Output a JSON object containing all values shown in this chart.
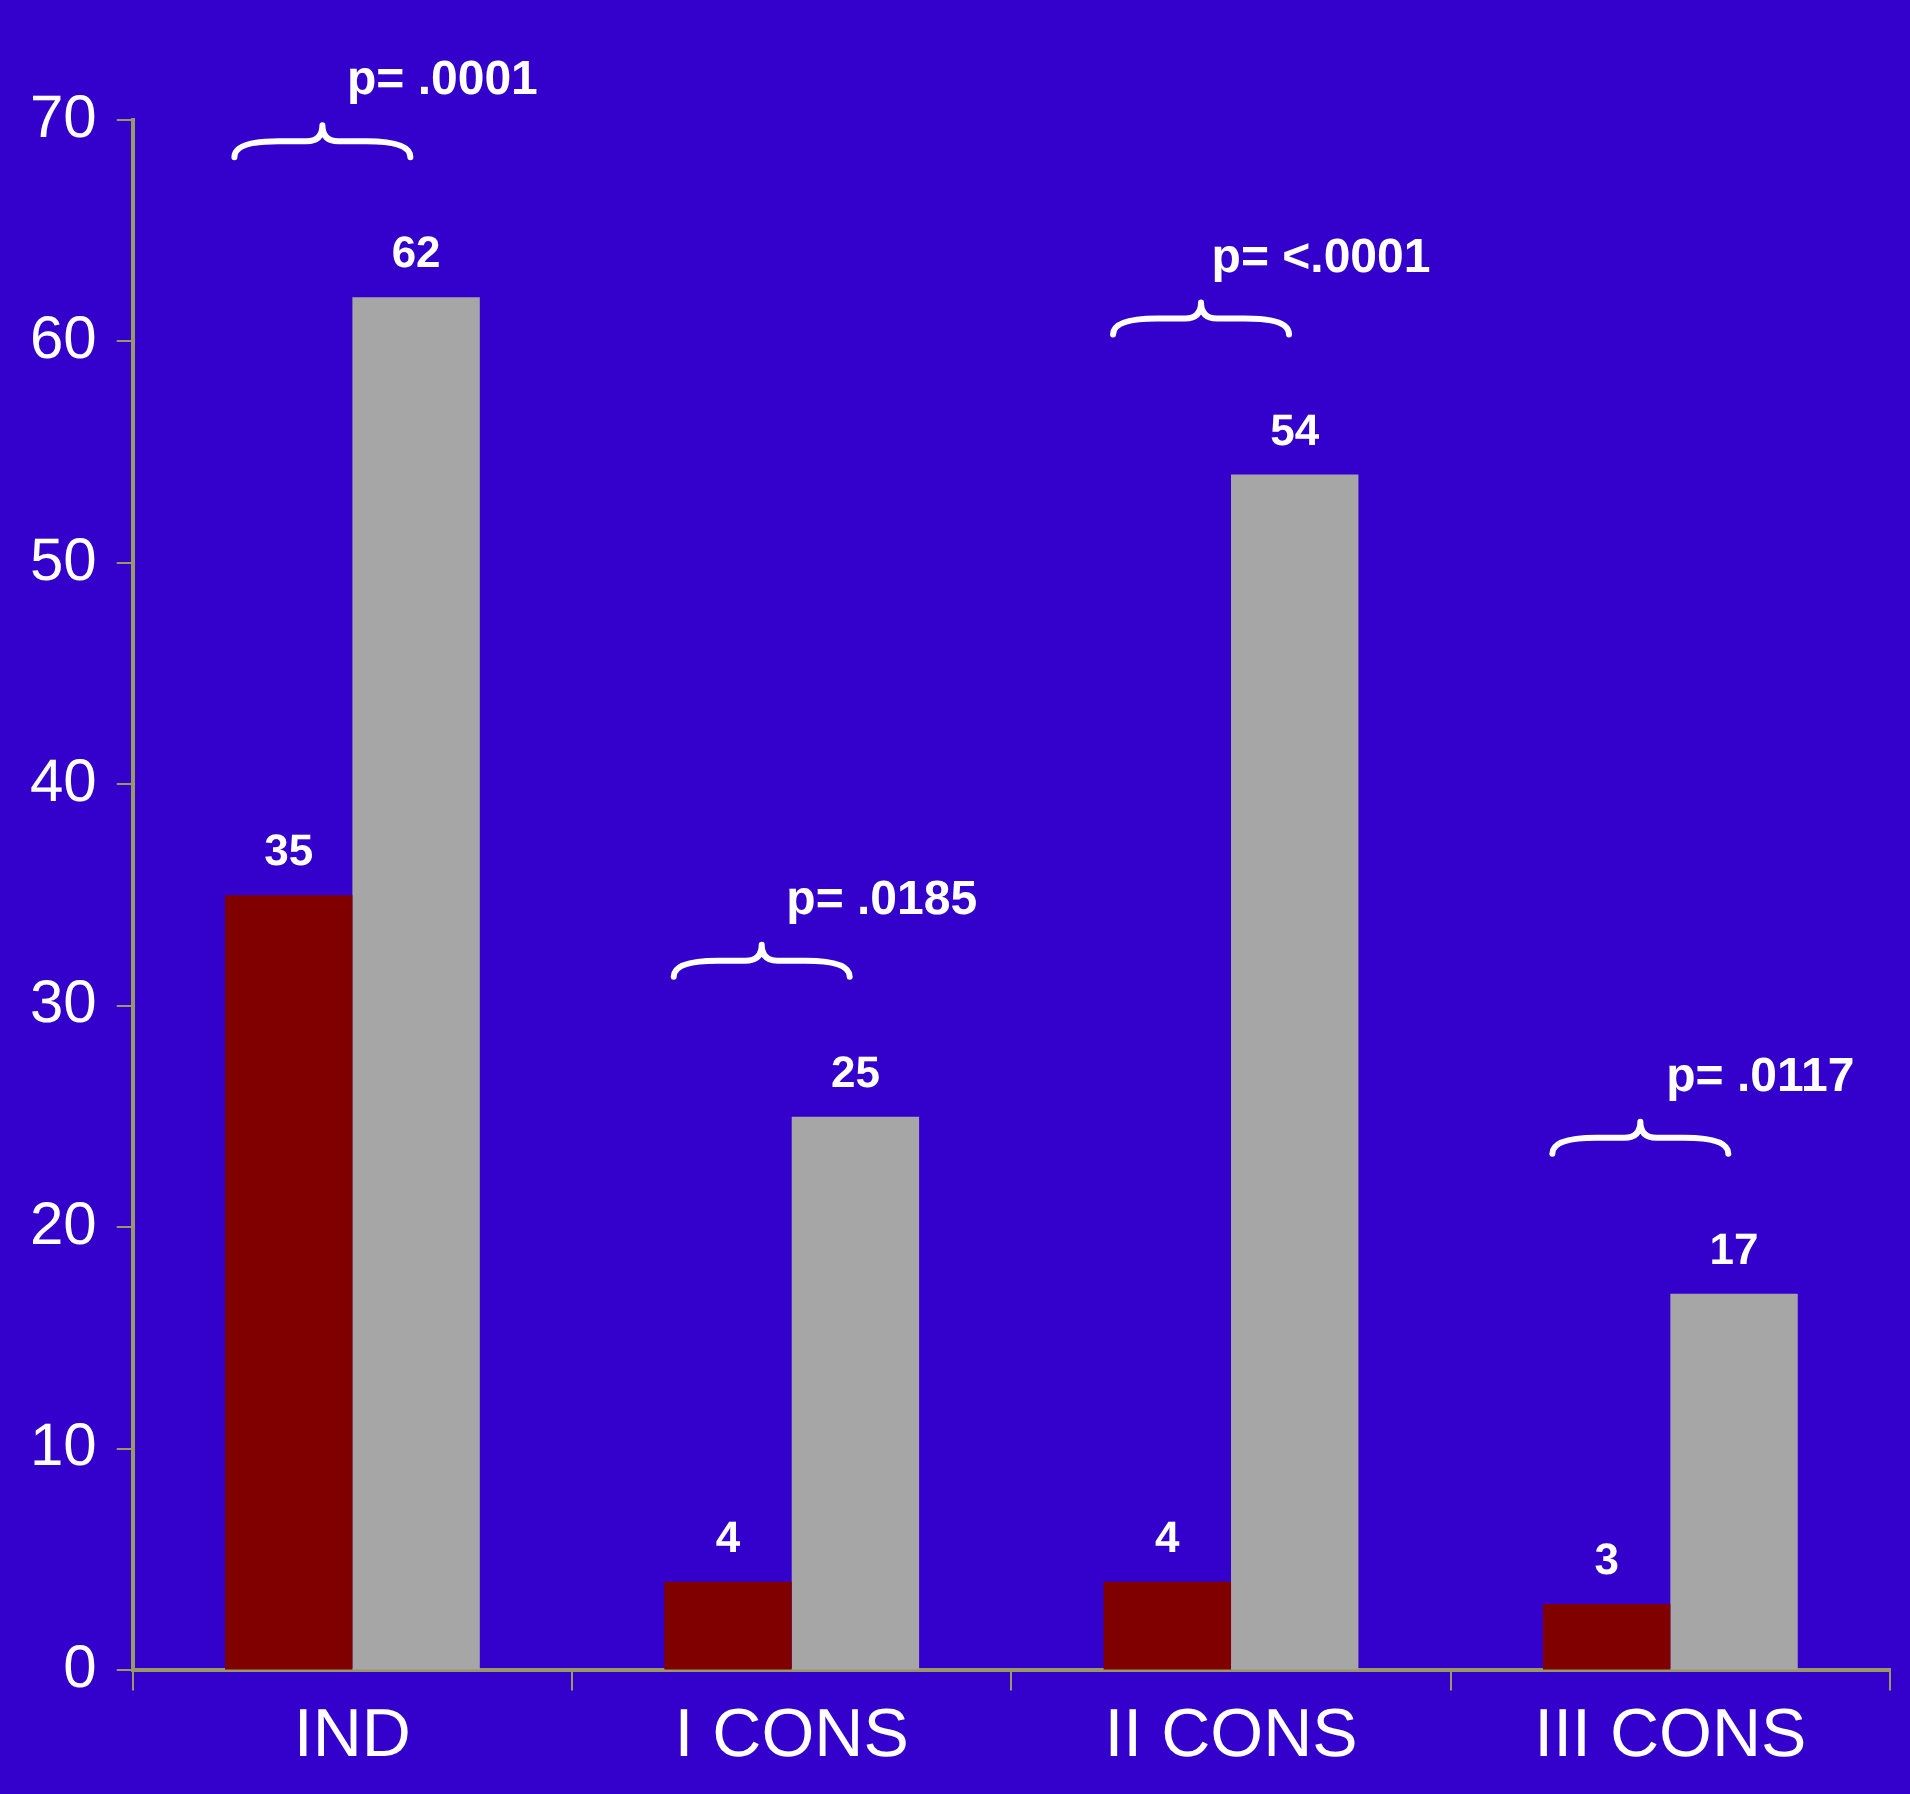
{
  "chart_data": {
    "type": "bar",
    "categories": [
      "IND",
      "I CONS",
      "II CONS",
      "III CONS"
    ],
    "series": [
      {
        "color": "#800000",
        "values": [
          35,
          4,
          4,
          3
        ]
      },
      {
        "color": "#a6a6a6",
        "values": [
          62,
          25,
          54,
          17
        ]
      }
    ],
    "data_labels": true,
    "ylim": [
      0,
      70
    ],
    "yticks": [
      0,
      10,
      20,
      30,
      40,
      50,
      60,
      70
    ],
    "grid": false,
    "legend": false,
    "annotations": [
      "p= .0001",
      "p= .0185",
      "p= <.0001",
      "p= .0117"
    ]
  }
}
